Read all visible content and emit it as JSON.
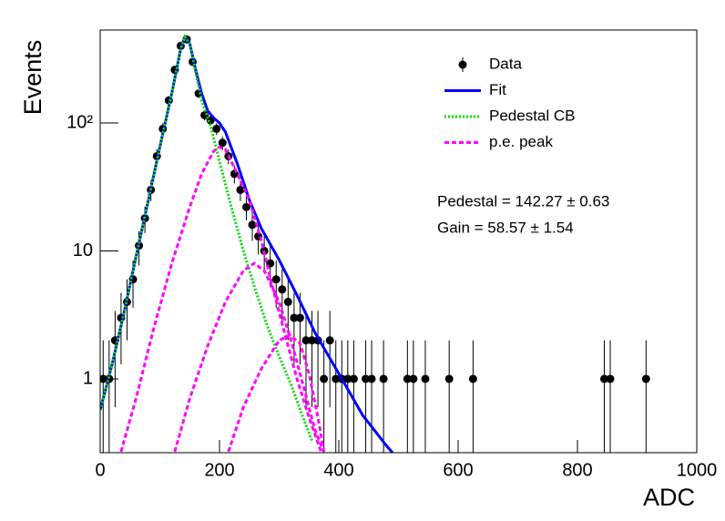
{
  "chart_data": {
    "type": "line",
    "x_label": "ADC",
    "y_label": "Events",
    "log_y": true,
    "legend_position": "upper right",
    "xlim": [
      0,
      1000
    ],
    "xticks": [
      0,
      200,
      400,
      600,
      800,
      1000
    ],
    "ylim": [
      0.265,
      532
    ],
    "yticks": [
      1,
      10,
      {
        "value": 100,
        "label": "10²"
      }
    ],
    "annotations": [
      "Pedestal = 142.27 ± 0.63",
      "Gain = 58.57 ± 1.54"
    ],
    "series": [
      {
        "name": "Data",
        "color": "#000000",
        "style": "points",
        "x": [
          5,
          15,
          25,
          35,
          45,
          55,
          65,
          75,
          85,
          95,
          105,
          115,
          125,
          135,
          145,
          155,
          165,
          175,
          185,
          195,
          205,
          215,
          225,
          235,
          245,
          255,
          265,
          275,
          285,
          295,
          305,
          315,
          325,
          335,
          345,
          355,
          365,
          375,
          385,
          395,
          405,
          415,
          425,
          445,
          455,
          475,
          515,
          525,
          545,
          585,
          625,
          845,
          855,
          915
        ],
        "values": [
          1,
          1,
          2,
          3,
          4,
          6,
          11,
          18,
          30,
          55,
          90,
          150,
          260,
          400,
          450,
          300,
          170,
          115,
          105,
          90,
          70,
          55,
          40,
          30,
          22,
          16,
          13,
          10,
          8,
          6,
          5,
          4,
          3,
          3,
          2,
          2,
          2,
          1,
          2,
          1,
          1,
          1,
          1,
          1,
          1,
          1,
          1,
          1,
          1,
          1,
          1,
          1,
          1,
          1
        ],
        "errors": [
          1,
          1,
          1.4,
          1.7,
          2,
          2.4,
          3.3,
          4.2,
          5.5,
          7.4,
          9.5,
          12.2,
          16.1,
          20,
          21.2,
          17.3,
          13,
          10.7,
          10.2,
          9.5,
          8.4,
          7.4,
          6.3,
          5.5,
          4.7,
          4,
          3.6,
          3.2,
          2.8,
          2.4,
          2.2,
          2,
          1.7,
          1.7,
          1.4,
          1.4,
          1.4,
          1,
          1.4,
          1,
          1,
          1,
          1,
          1,
          1,
          1,
          1,
          1,
          1,
          1,
          1,
          1,
          1,
          1
        ]
      },
      {
        "name": "Fit",
        "color": "#0000ff",
        "style": "solid",
        "x": [
          0,
          20,
          40,
          60,
          80,
          100,
          120,
          135,
          142,
          150,
          160,
          170,
          180,
          190,
          200,
          210,
          230,
          250,
          270,
          300,
          330,
          360,
          400,
          440,
          480,
          490
        ],
        "values": [
          0.57,
          1.3,
          3.3,
          9,
          24,
          65,
          170,
          380,
          470,
          420,
          260,
          170,
          125,
          110,
          100,
          85,
          48,
          25,
          15,
          8.5,
          4.5,
          2.3,
          1.1,
          0.52,
          0.3,
          0.265
        ]
      },
      {
        "name": "Pedestal CB",
        "color": "#00dd00",
        "style": "dotted",
        "x": [
          0,
          20,
          40,
          60,
          80,
          100,
          120,
          135,
          142,
          150,
          160,
          170,
          185,
          200,
          220,
          240,
          260,
          280,
          300,
          320,
          340,
          355
        ],
        "values": [
          0.57,
          1.3,
          3.3,
          9,
          24,
          65,
          170,
          380,
          470,
          420,
          250,
          150,
          95,
          50,
          22,
          10,
          5,
          2.6,
          1.5,
          0.9,
          0.5,
          0.33
        ]
      },
      {
        "name": "p.e. peak",
        "color": "#ff00ff",
        "style": "dashed",
        "x": [
          35,
          60,
          90,
          120,
          150,
          170,
          190,
          200,
          210,
          230,
          250,
          270,
          290,
          310,
          330,
          350,
          370,
          null,
          125,
          150,
          180,
          210,
          240,
          258,
          275,
          300,
          320,
          340,
          360,
          375,
          null,
          215,
          240,
          270,
          300,
          318,
          335,
          350,
          365,
          375
        ],
        "values": [
          0.27,
          0.7,
          2.5,
          8,
          22,
          40,
          60,
          65,
          62,
          40,
          25,
          12,
          5,
          2.2,
          1.0,
          0.5,
          0.27,
          null,
          0.27,
          0.7,
          1.8,
          4,
          7,
          8,
          7,
          4,
          2,
          0.9,
          0.4,
          0.27,
          null,
          0.27,
          0.6,
          1.2,
          2,
          2.2,
          1.9,
          1.1,
          0.5,
          0.27
        ]
      }
    ]
  }
}
